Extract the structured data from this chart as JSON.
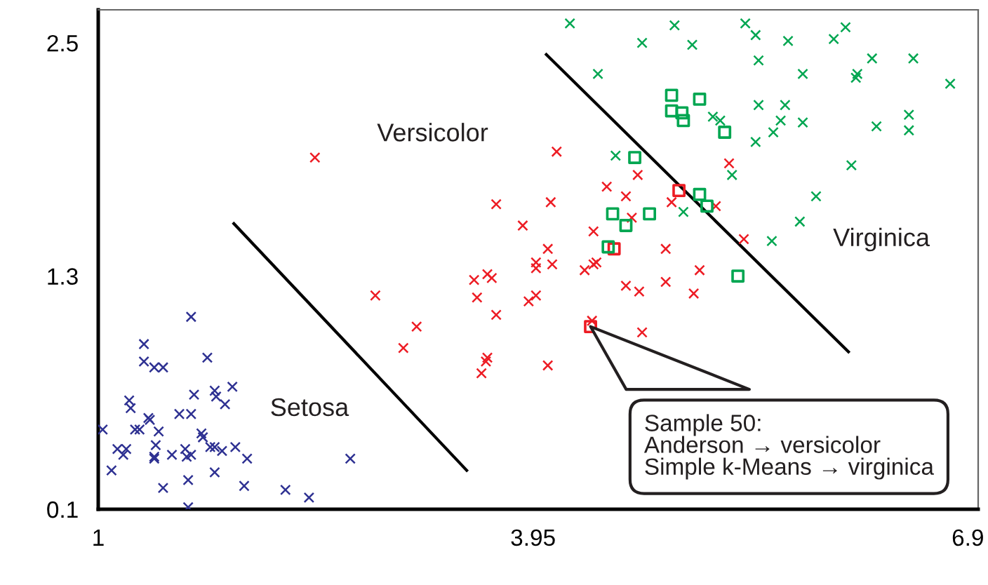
{
  "chart_data": {
    "type": "scatter",
    "xlim": [
      1,
      6.97
    ],
    "ylim": [
      0.1,
      2.67
    ],
    "xticks": [
      1,
      3.95,
      6.9
    ],
    "yticks": [
      0.1,
      1.3,
      2.5
    ],
    "grid": false,
    "legend": false,
    "marker": "cross",
    "annotations": [
      {
        "text": "Sample 50:\nAnderson → versicolor\nSimple k-Means → virginica",
        "x": 4.34,
        "y": 1.04
      }
    ],
    "series": [
      {
        "name": "Setosa",
        "color": "#2e3192",
        "x": [
          1.63,
          1.31,
          1.74,
          1.31,
          1.38,
          1.44,
          1.91,
          1.65,
          1.79,
          1.8,
          1.86,
          1.21,
          1.22,
          1.55,
          1.63,
          1.34,
          1.35,
          1.03,
          1.25,
          1.28,
          1.41,
          1.7,
          1.71,
          1.39,
          1.13,
          1.19,
          1.17,
          1.79,
          1.76,
          1.84,
          1.93,
          1.59,
          1.6,
          1.63,
          1.5,
          1.38,
          1.38,
          2.01,
          2.71,
          1.09,
          1.79,
          1.61,
          1.99,
          1.44,
          2.27,
          2.43,
          1.61
        ],
        "values": [
          1.09,
          0.95,
          0.88,
          0.86,
          0.83,
          0.83,
          0.73,
          0.69,
          0.71,
          0.68,
          0.64,
          0.66,
          0.62,
          0.59,
          0.59,
          0.57,
          0.56,
          0.51,
          0.51,
          0.51,
          0.5,
          0.49,
          0.47,
          0.43,
          0.41,
          0.41,
          0.38,
          0.42,
          0.42,
          0.4,
          0.42,
          0.41,
          0.37,
          0.38,
          0.38,
          0.37,
          0.36,
          0.36,
          0.36,
          0.3,
          0.29,
          0.25,
          0.22,
          0.21,
          0.2,
          0.16,
          0.11
        ]
      },
      {
        "name": "Versicolor",
        "color": "#ed1c24",
        "x": [
          4.11,
          3.7,
          4.07,
          4.45,
          4.66,
          4.58,
          4.89,
          5.28,
          5.19,
          3.88,
          4.36,
          4.62,
          5.38,
          4.05,
          3.97,
          3.97,
          4.08,
          4.38,
          4.36,
          4.3,
          4.85,
          5.08,
          4.58,
          4.67,
          4.85,
          5.04,
          3.55,
          3.64,
          3.67,
          2.88,
          3.57,
          3.97,
          3.92,
          3.7,
          3.16,
          3.07,
          4.69,
          3.64,
          3.63,
          3.6,
          4.05,
          2.47,
          4.35
        ],
        "values": [
          1.94,
          1.67,
          1.68,
          1.76,
          1.82,
          1.71,
          1.68,
          1.88,
          1.66,
          1.56,
          1.53,
          1.6,
          1.49,
          1.44,
          1.37,
          1.34,
          1.36,
          1.37,
          1.36,
          1.33,
          1.44,
          1.33,
          1.25,
          1.22,
          1.27,
          1.21,
          1.28,
          1.31,
          1.29,
          1.2,
          1.19,
          1.2,
          1.17,
          1.1,
          1.04,
          0.93,
          1.01,
          0.88,
          0.86,
          0.8,
          0.84,
          1.91,
          1.07
        ]
      },
      {
        "name": "Virginica",
        "color": "#00a651",
        "x": [
          4.2,
          4.91,
          5.39,
          5.46,
          6.07,
          5.99,
          4.69,
          5.03,
          5.68,
          4.39,
          5.48,
          5.78,
          6.15,
          6.14,
          6.25,
          6.53,
          6.78,
          5.48,
          5.66,
          5.17,
          5.22,
          5.63,
          5.58,
          5.78,
          5.46,
          6.28,
          6.5,
          6.5,
          4.51,
          5.3,
          6.11,
          4.97,
          5.87,
          5.76,
          5.57
        ],
        "values": [
          2.6,
          2.59,
          2.6,
          2.54,
          2.58,
          2.52,
          2.5,
          2.49,
          2.51,
          2.34,
          2.41,
          2.34,
          2.34,
          2.32,
          2.42,
          2.42,
          2.29,
          2.18,
          2.18,
          2.12,
          2.1,
          2.1,
          2.04,
          2.09,
          1.99,
          2.07,
          2.13,
          2.05,
          1.92,
          1.82,
          1.87,
          1.63,
          1.71,
          1.58,
          1.48
        ]
      },
      {
        "color": "#ed1c24",
        "marker": "square",
        "x": [
          4.34,
          4.5,
          4.94
        ],
        "values": [
          1.04,
          1.44,
          1.74
        ]
      },
      {
        "color": "#00a651",
        "marker": "square",
        "x": [
          4.64,
          5.25,
          4.49,
          4.74,
          4.58,
          4.46,
          5.08,
          5.13,
          5.34,
          4.89,
          5.08,
          4.89,
          4.96,
          4.97
        ],
        "values": [
          1.91,
          2.04,
          1.62,
          1.62,
          1.56,
          1.45,
          1.72,
          1.66,
          1.3,
          2.23,
          2.21,
          2.15,
          2.14,
          2.1
        ]
      },
      {
        "type": "line",
        "color": "#000000",
        "marker": "none",
        "x": [
          1.92,
          3.5
        ],
        "values": [
          1.57,
          0.3
        ]
      },
      {
        "type": "line",
        "color": "#000000",
        "marker": "none",
        "x": [
          4.04,
          6.09
        ],
        "values": [
          2.44,
          0.91
        ]
      }
    ]
  }
}
